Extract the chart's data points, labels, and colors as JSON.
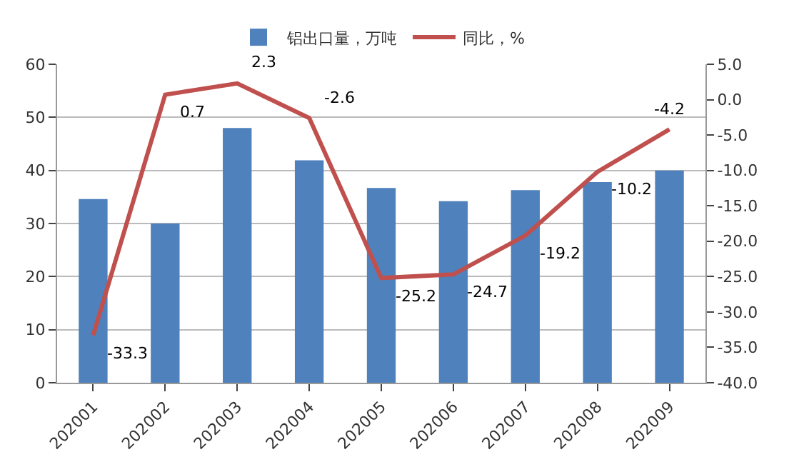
{
  "chart_data": {
    "type": "bar",
    "categories": [
      "202001",
      "202002",
      "202003",
      "202004",
      "202005",
      "202006",
      "202007",
      "202008",
      "202009"
    ],
    "series": [
      {
        "name": "铝出口量，万吨",
        "color": "#4f81bd",
        "values": [
          34.6,
          30.0,
          48.0,
          41.9,
          36.7,
          34.2,
          36.3,
          37.8,
          40.0
        ]
      },
      {
        "name": "同比，%",
        "type": "line",
        "axis": "y2",
        "color": "#c0504d",
        "values": [
          -33.3,
          0.7,
          2.3,
          -2.6,
          -25.2,
          -24.7,
          -19.2,
          -10.2,
          -4.2
        ],
        "value_labels": [
          "-33.3",
          "0.7",
          "2.3",
          "-2.6",
          "-25.2",
          "-24.7",
          "-19.2",
          "-10.2",
          "-4.2"
        ]
      }
    ],
    "ylim": [
      0,
      60
    ],
    "yticks": [
      0,
      10,
      20,
      30,
      40,
      50,
      60
    ],
    "y2lim": [
      -40,
      5
    ],
    "y2ticks": [
      {
        "value": 5,
        "label": "5.0"
      },
      {
        "value": 0,
        "label": "0.0"
      },
      {
        "value": -5,
        "label": "-5.0"
      },
      {
        "value": -10,
        "label": "-10.0"
      },
      {
        "value": -15,
        "label": "-15.0"
      },
      {
        "value": -20,
        "label": "-20.0"
      },
      {
        "value": -25,
        "label": "-25.0"
      },
      {
        "value": -30,
        "label": "-30.0"
      },
      {
        "value": -35,
        "label": "-35.0"
      },
      {
        "value": -40,
        "label": "-40.0"
      }
    ],
    "grid": "y",
    "legend": "top",
    "marker": "none",
    "line_style": "solid"
  }
}
